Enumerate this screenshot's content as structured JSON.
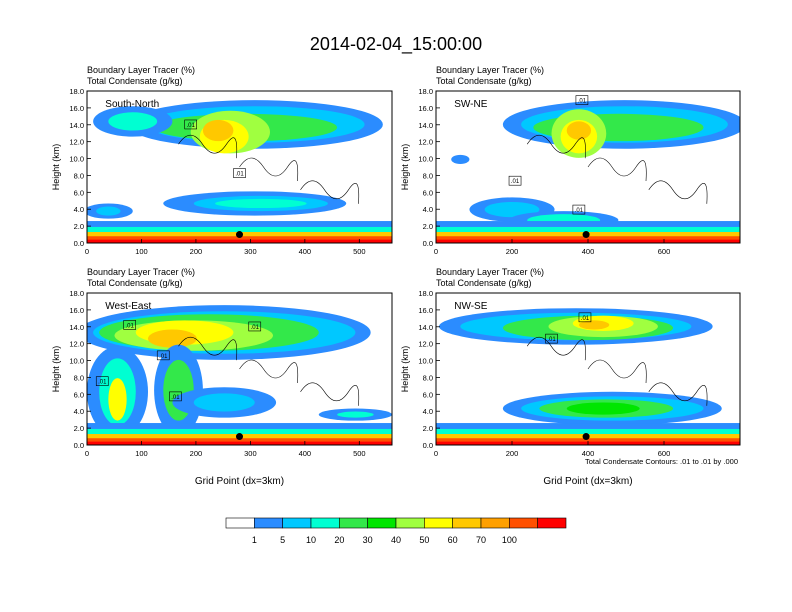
{
  "title": "2014-02-04_15:00:00",
  "footnote": "Total Condensate Contours: .01 to .01 by .000",
  "colors": {
    "levels": [
      "#ffffff",
      "#2b8cff",
      "#00c8ff",
      "#00ffd2",
      "#33e84a",
      "#00e600",
      "#a0ff40",
      "#ffff00",
      "#ffc800",
      "#ffa000",
      "#ff5000",
      "#ff0000"
    ],
    "marker": "#000000"
  },
  "colorbar": {
    "labels": [
      "1",
      "5",
      "10",
      "20",
      "30",
      "40",
      "50",
      "60",
      "70",
      "100"
    ]
  },
  "chart_data": [
    {
      "type": "heatmap",
      "panel": "South-North",
      "title_line1": "Boundary Layer Tracer   (%)",
      "title_line2": "Total Condensate   (g/kg)",
      "ylabel": "Height (km)",
      "xlabel": "",
      "xlim": [
        0,
        560
      ],
      "ylim": [
        0,
        18
      ],
      "x_ticks": [
        0,
        100,
        200,
        300,
        400,
        500
      ],
      "y_ticks": [
        "0.0",
        "2.0",
        "4.0",
        "6.0",
        "8.0",
        "10.0",
        "12.0",
        "14.0",
        "16.0",
        "18.0"
      ],
      "contour_labels": [
        ".01",
        ".01"
      ],
      "marker": {
        "x": 280,
        "y": 1.0
      }
    },
    {
      "type": "heatmap",
      "panel": "SW-NE",
      "title_line1": "Boundary Layer Tracer   (%)",
      "title_line2": "Total Condensate   (g/kg)",
      "ylabel": "Height (km)",
      "xlabel": "",
      "xlim": [
        0,
        800
      ],
      "ylim": [
        0,
        18
      ],
      "x_ticks": [
        0,
        200,
        400,
        600
      ],
      "y_ticks": [
        "0.0",
        "2.0",
        "4.0",
        "6.0",
        "8.0",
        "10.0",
        "12.0",
        "14.0",
        "16.0",
        "18.0"
      ],
      "contour_labels": [
        ".01",
        ".01",
        ".01"
      ],
      "marker": {
        "x": 395,
        "y": 1.0
      }
    },
    {
      "type": "heatmap",
      "panel": "West-East",
      "title_line1": "Boundary Layer Tracer   (%)",
      "title_line2": "Total Condensate   (g/kg)",
      "ylabel": "Height (km)",
      "xlabel": "Grid Point (dx=3km)",
      "xlim": [
        0,
        560
      ],
      "ylim": [
        0,
        18
      ],
      "x_ticks": [
        0,
        100,
        200,
        300,
        400,
        500
      ],
      "y_ticks": [
        "0.0",
        "2.0",
        "4.0",
        "6.0",
        "8.0",
        "10.0",
        "12.0",
        "14.0",
        "16.0",
        "18.0"
      ],
      "contour_labels": [
        ".01",
        ".01",
        ".01",
        ".01",
        ".01"
      ],
      "marker": {
        "x": 280,
        "y": 1.0
      }
    },
    {
      "type": "heatmap",
      "panel": "NW-SE",
      "title_line1": "Boundary Layer Tracer   (%)",
      "title_line2": "Total Condensate   (g/kg)",
      "ylabel": "Height (km)",
      "xlabel": "Grid Point (dx=3km)",
      "xlim": [
        0,
        800
      ],
      "ylim": [
        0,
        18
      ],
      "x_ticks": [
        0,
        200,
        400,
        600
      ],
      "y_ticks": [
        "0.0",
        "2.0",
        "4.0",
        "6.0",
        "8.0",
        "10.0",
        "12.0",
        "14.0",
        "16.0",
        "18.0"
      ],
      "contour_labels": [
        ".01",
        ".01"
      ],
      "marker": {
        "x": 395,
        "y": 1.0
      }
    }
  ]
}
